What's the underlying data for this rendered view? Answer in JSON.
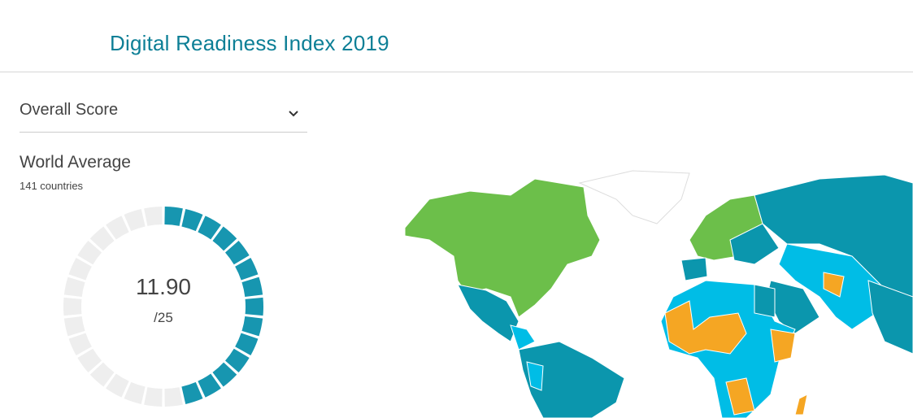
{
  "header": {
    "title": "Digital Readiness Index 2019"
  },
  "selector": {
    "label": "Overall Score"
  },
  "summary": {
    "title": "World Average",
    "subtitle": "141 countries"
  },
  "gauge": {
    "value": 11.9,
    "value_label": "11.90",
    "max": 25,
    "max_label": "/25"
  }
}
